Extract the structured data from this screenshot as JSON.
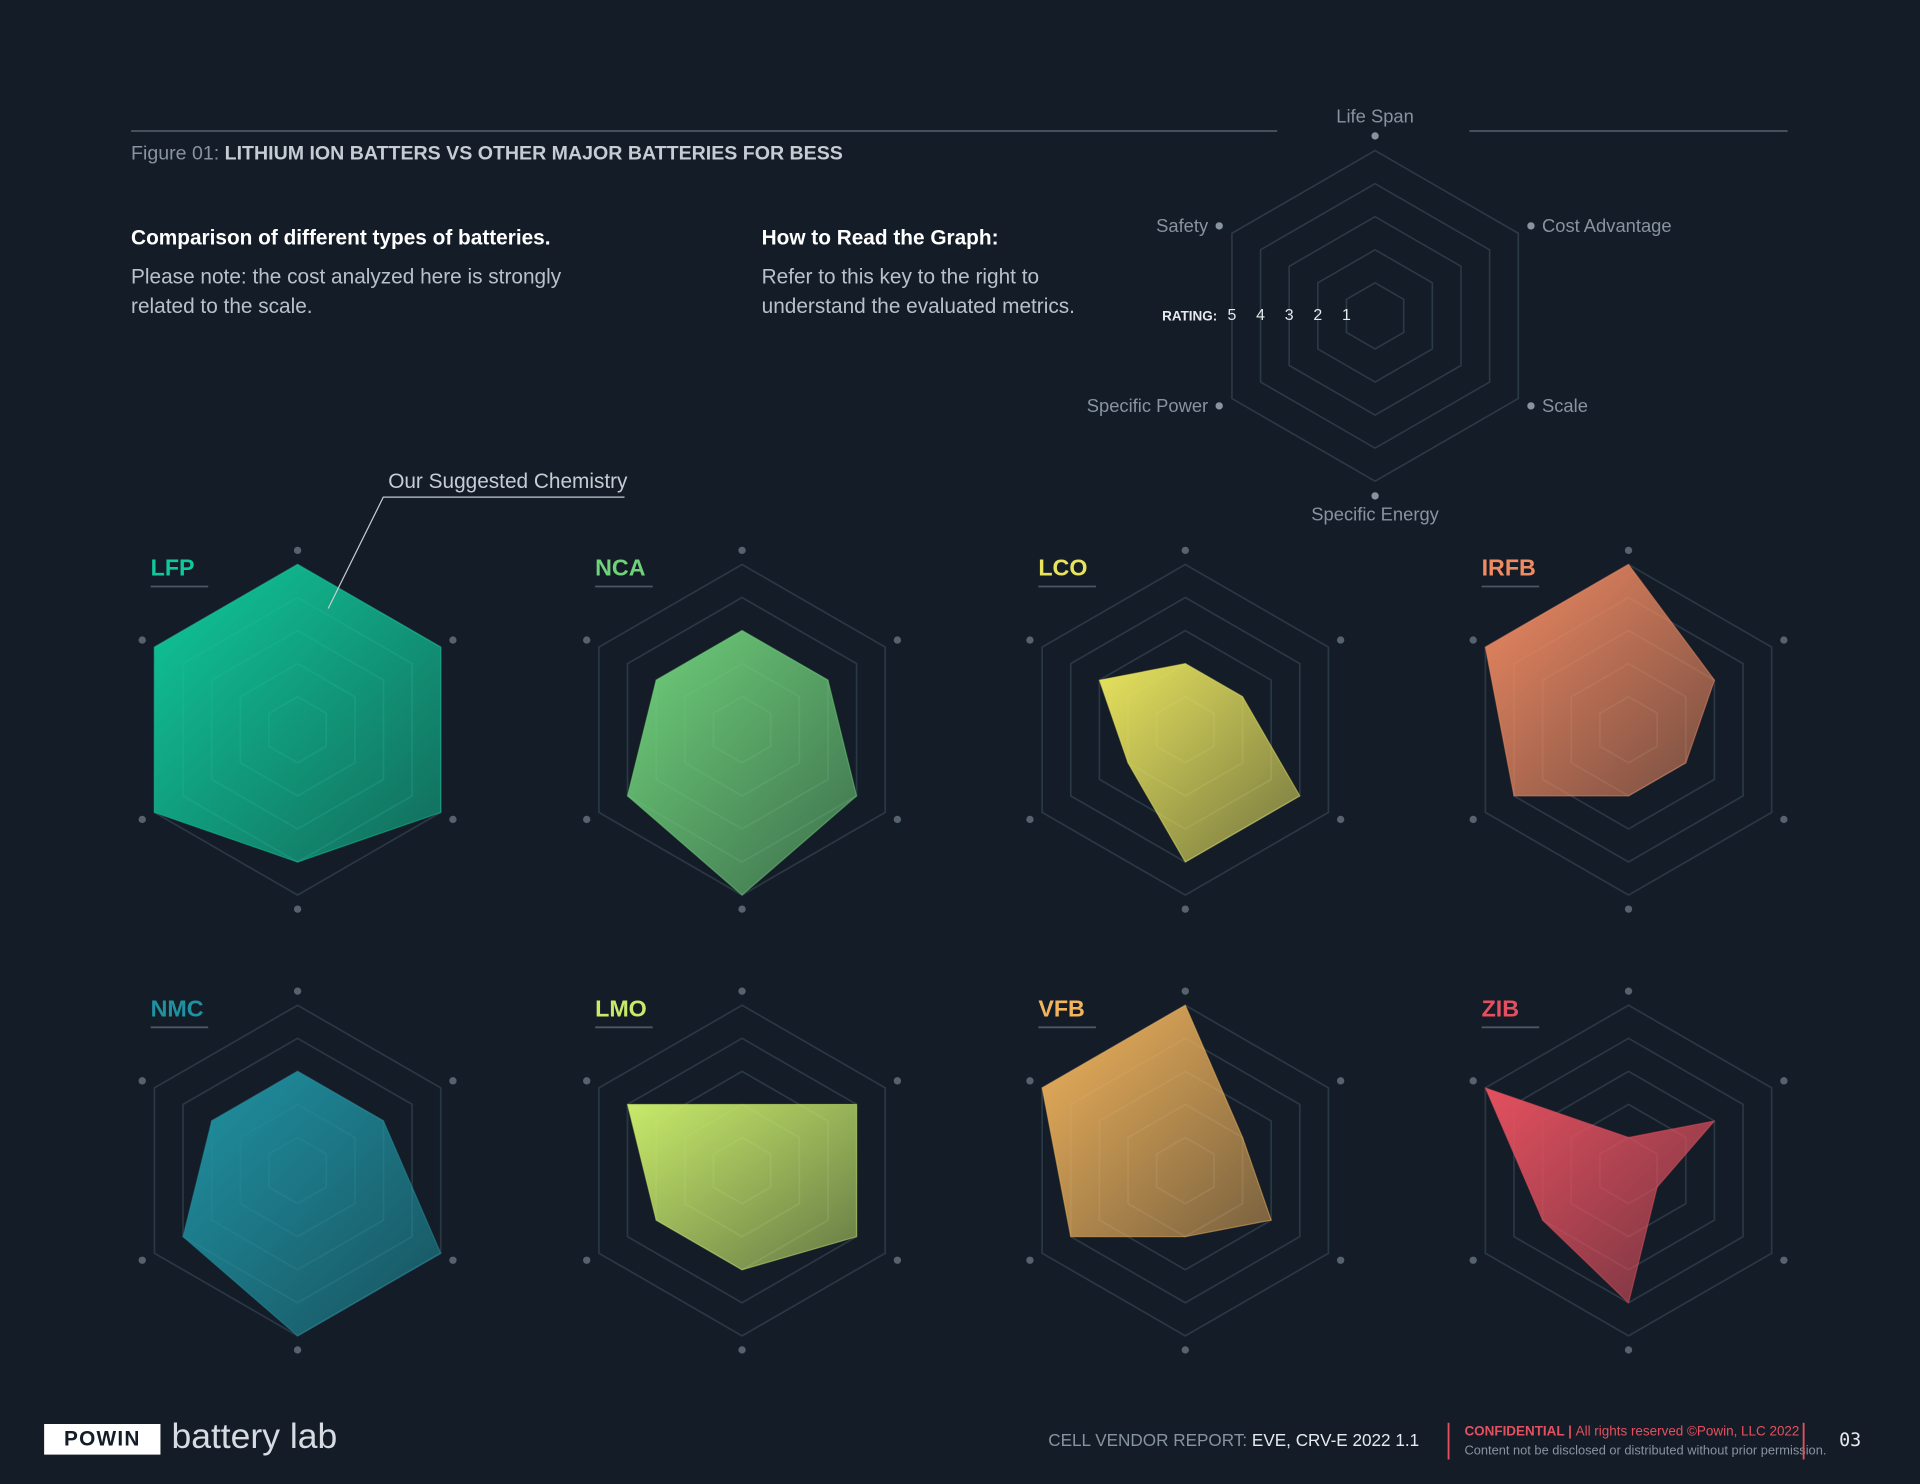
{
  "header": {
    "figure_label": "Figure 01:",
    "figure_title": "LITHIUM ION BATTERS VS OTHER MAJOR BATTERIES FOR BESS"
  },
  "intro": {
    "heading": "Comparison of different types of batteries.",
    "lines": [
      "Please note: the cost analyzed here is strongly",
      "related to the scale."
    ]
  },
  "howto": {
    "heading": "How to Read the Graph:",
    "lines": [
      "Refer to this key to the right to",
      "understand the evaluated metrics."
    ]
  },
  "key": {
    "axes": [
      "Life Span",
      "Cost Advantage",
      "Scale",
      "Specific Energy",
      "Specific Power",
      "Safety"
    ],
    "rating_label": "RATING:",
    "rating_ticks": [
      5,
      4,
      3,
      2,
      1
    ]
  },
  "chart_data": [
    {
      "type": "radar",
      "title": "LFP",
      "color": "#10c99a",
      "values": [
        5,
        5,
        5,
        4,
        5,
        5
      ],
      "rlim": [
        0,
        5
      ],
      "rticks": [
        1,
        2,
        3,
        4,
        5
      ],
      "annotation": "Our Suggested Chemistry"
    },
    {
      "type": "radar",
      "title": "NCA",
      "color": "#6fd17a",
      "values": [
        3,
        3,
        4,
        5,
        4,
        3
      ],
      "rlim": [
        0,
        5
      ],
      "rticks": [
        1,
        2,
        3,
        4,
        5
      ]
    },
    {
      "type": "radar",
      "title": "LCO",
      "color": "#e8e35e",
      "values": [
        2,
        2,
        4,
        4,
        2,
        3
      ],
      "rlim": [
        0,
        5
      ],
      "rticks": [
        1,
        2,
        3,
        4,
        5
      ]
    },
    {
      "type": "radar",
      "title": "IRFB",
      "color": "#f08a62",
      "values": [
        5,
        3,
        2,
        2,
        4,
        5
      ],
      "rlim": [
        0,
        5
      ],
      "rticks": [
        1,
        2,
        3,
        4,
        5
      ]
    },
    {
      "type": "radar",
      "title": "NMC",
      "color": "#1f92a2",
      "values": [
        3,
        3,
        5,
        5,
        4,
        3
      ],
      "rlim": [
        0,
        5
      ],
      "rticks": [
        1,
        2,
        3,
        4,
        5
      ]
    },
    {
      "type": "radar",
      "title": "LMO",
      "color": "#c8ea6a",
      "values": [
        2,
        4,
        4,
        3,
        3,
        4
      ],
      "rlim": [
        0,
        5
      ],
      "rticks": [
        1,
        2,
        3,
        4,
        5
      ]
    },
    {
      "type": "radar",
      "title": "VFB",
      "color": "#f2b45c",
      "values": [
        5,
        2,
        3,
        2,
        4,
        5
      ],
      "rlim": [
        0,
        5
      ],
      "rticks": [
        1,
        2,
        3,
        4,
        5
      ]
    },
    {
      "type": "radar",
      "title": "ZIB",
      "color": "#e4505f",
      "values": [
        1,
        3,
        1,
        4,
        3,
        5
      ],
      "rlim": [
        0,
        5
      ],
      "rticks": [
        1,
        2,
        3,
        4,
        5
      ]
    }
  ],
  "footer": {
    "brand": "POWIN",
    "product": "battery lab",
    "report_label": "CELL VENDOR REPORT:",
    "report_name": "EVE, CRV-E 2022 1.1",
    "confidential": "CONFIDENTIAL |",
    "rights": "All rights reserved ©Powin, LLC 2022",
    "notice": "Content not be disclosed or distributed without prior permission.",
    "page": "03"
  }
}
